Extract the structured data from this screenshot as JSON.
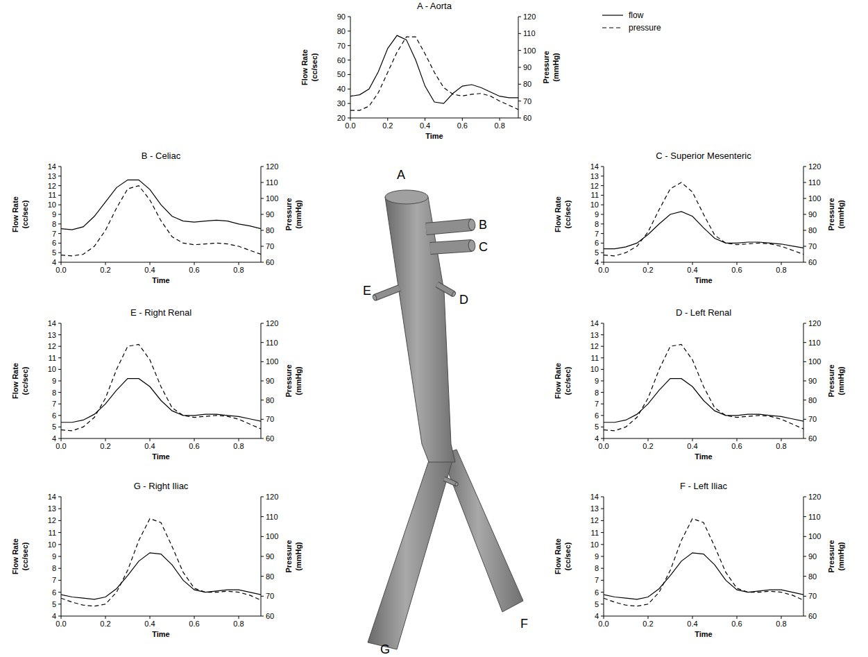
{
  "chart_data": [
    {
      "type": "line",
      "title": "A - Aorta",
      "x_label": "Time",
      "y_label": "Flow Rate (cc/sec)",
      "y2_label": "Pressure (mmHg)",
      "legend": "right",
      "x": [
        0,
        0.05,
        0.1,
        0.15,
        0.2,
        0.25,
        0.3,
        0.35,
        0.4,
        0.45,
        0.5,
        0.55,
        0.6,
        0.65,
        0.7,
        0.75,
        0.8,
        0.85,
        0.9
      ],
      "xlim": [
        0,
        0.9
      ],
      "xticks": [
        {
          "value": 0,
          "label": "0.0"
        },
        0.2,
        0.4,
        0.6,
        0.8
      ],
      "ylim": [
        20,
        90
      ],
      "yticks": [
        20,
        30,
        40,
        50,
        60,
        70,
        80,
        90
      ],
      "y2lim": [
        60,
        120
      ],
      "y2ticks": [
        60,
        70,
        80,
        90,
        100,
        110,
        120
      ],
      "series": [
        {
          "name": "flow",
          "color": "#000000",
          "line_style": "solid",
          "values": [
            35,
            36,
            40,
            52,
            68,
            77,
            74,
            60,
            42,
            31,
            30,
            37,
            42,
            43,
            41,
            38,
            35,
            34,
            34
          ]
        },
        {
          "name": "pressure",
          "color": "#000000",
          "line_style": "dashed",
          "axis": "y2",
          "values": [
            64.5,
            64.5,
            67,
            75,
            87,
            99,
            108,
            108,
            98,
            87,
            78,
            74,
            73,
            74,
            74.5,
            73,
            70,
            67.5,
            65
          ]
        }
      ]
    },
    {
      "type": "line",
      "title": "B - Celiac",
      "x_label": "Time",
      "y_label": "Flow Rate (cc/sec)",
      "y2_label": "Pressure (mmHg)",
      "x": [
        0,
        0.05,
        0.1,
        0.15,
        0.2,
        0.25,
        0.3,
        0.35,
        0.4,
        0.45,
        0.5,
        0.55,
        0.6,
        0.65,
        0.7,
        0.75,
        0.8,
        0.85,
        0.9
      ],
      "xlim": [
        0,
        0.9
      ],
      "xticks": [
        {
          "value": 0,
          "label": "0.0"
        },
        0.2,
        0.4,
        0.6,
        0.8
      ],
      "ylim": [
        4,
        14
      ],
      "yticks": [
        4,
        5,
        6,
        7,
        8,
        9,
        10,
        11,
        12,
        13,
        14
      ],
      "y2lim": [
        60,
        120
      ],
      "y2ticks": [
        60,
        70,
        80,
        90,
        100,
        110,
        120
      ],
      "series": [
        {
          "color": "#000000",
          "line_style": "solid",
          "values": [
            7.5,
            7.4,
            7.7,
            8.8,
            10.3,
            11.8,
            12.6,
            12.6,
            11.6,
            10.0,
            8.8,
            8.3,
            8.2,
            8.3,
            8.4,
            8.3,
            8.0,
            7.8,
            7.5
          ]
        },
        {
          "color": "#000000",
          "line_style": "dashed",
          "axis": "y2",
          "values": [
            64.5,
            64,
            65,
            70,
            80,
            94,
            106,
            108,
            99,
            86,
            76,
            72,
            71,
            71.5,
            72,
            71.5,
            70,
            67.5,
            65
          ]
        }
      ]
    },
    {
      "type": "line",
      "title": "C - Superior Mesenteric",
      "x_label": "Time",
      "y_label": "Flow Rate (cc/sec)",
      "y2_label": "Pressure (mmHg)",
      "x": [
        0,
        0.05,
        0.1,
        0.15,
        0.2,
        0.25,
        0.3,
        0.35,
        0.4,
        0.45,
        0.5,
        0.55,
        0.6,
        0.65,
        0.7,
        0.75,
        0.8,
        0.85,
        0.9
      ],
      "xlim": [
        0,
        0.9
      ],
      "xticks": [
        {
          "value": 0,
          "label": "0.0"
        },
        0.2,
        0.4,
        0.6,
        0.8
      ],
      "ylim": [
        4,
        14
      ],
      "yticks": [
        4,
        5,
        6,
        7,
        8,
        9,
        10,
        11,
        12,
        13,
        14
      ],
      "y2lim": [
        60,
        120
      ],
      "y2ticks": [
        60,
        70,
        80,
        90,
        100,
        110,
        120
      ],
      "series": [
        {
          "color": "#000000",
          "line_style": "solid",
          "values": [
            5.4,
            5.4,
            5.6,
            6.0,
            6.9,
            8.0,
            9.0,
            9.3,
            8.8,
            7.6,
            6.5,
            6.0,
            6.0,
            6.1,
            6.1,
            6.0,
            5.9,
            5.7,
            5.5
          ]
        },
        {
          "color": "#000000",
          "line_style": "dashed",
          "axis": "y2",
          "values": [
            64.5,
            64,
            66,
            70,
            79,
            93,
            106,
            110,
            104,
            90,
            77,
            72,
            71,
            71.5,
            72,
            71.5,
            70,
            67.5,
            65
          ]
        }
      ]
    },
    {
      "type": "line",
      "title": "E - Right Renal",
      "x_label": "Time",
      "y_label": "Flow Rate (cc/sec)",
      "y2_label": "Pressure (mmHg)",
      "x": [
        0,
        0.05,
        0.1,
        0.15,
        0.2,
        0.25,
        0.3,
        0.35,
        0.4,
        0.45,
        0.5,
        0.55,
        0.6,
        0.65,
        0.7,
        0.75,
        0.8,
        0.85,
        0.9
      ],
      "xlim": [
        0,
        0.9
      ],
      "xticks": [
        {
          "value": 0,
          "label": "0.0"
        },
        0.2,
        0.4,
        0.6,
        0.8
      ],
      "ylim": [
        4,
        14
      ],
      "yticks": [
        4,
        5,
        6,
        7,
        8,
        9,
        10,
        11,
        12,
        13,
        14
      ],
      "y2lim": [
        60,
        120
      ],
      "y2ticks": [
        60,
        70,
        80,
        90,
        100,
        110,
        120
      ],
      "series": [
        {
          "color": "#000000",
          "line_style": "solid",
          "values": [
            5.4,
            5.4,
            5.6,
            6.1,
            7.0,
            8.2,
            9.2,
            9.2,
            8.5,
            7.3,
            6.4,
            6.0,
            6.0,
            6.1,
            6.1,
            6.0,
            5.9,
            5.7,
            5.5
          ]
        },
        {
          "color": "#000000",
          "line_style": "dashed",
          "axis": "y2",
          "values": [
            64.5,
            64,
            66,
            71,
            81,
            96,
            108,
            109,
            101,
            87,
            76,
            72,
            71,
            71.5,
            72,
            71.5,
            70,
            67.5,
            65
          ]
        }
      ]
    },
    {
      "type": "line",
      "title": "D - Left Renal",
      "x_label": "Time",
      "y_label": "Flow Rate (cc/sec)",
      "y2_label": "Pressure (mmHg)",
      "x": [
        0,
        0.05,
        0.1,
        0.15,
        0.2,
        0.25,
        0.3,
        0.35,
        0.4,
        0.45,
        0.5,
        0.55,
        0.6,
        0.65,
        0.7,
        0.75,
        0.8,
        0.85,
        0.9
      ],
      "xlim": [
        0,
        0.9
      ],
      "xticks": [
        {
          "value": 0,
          "label": "0.0"
        },
        0.2,
        0.4,
        0.6,
        0.8
      ],
      "ylim": [
        4,
        14
      ],
      "yticks": [
        4,
        5,
        6,
        7,
        8,
        9,
        10,
        11,
        12,
        13,
        14
      ],
      "y2lim": [
        60,
        120
      ],
      "y2ticks": [
        60,
        70,
        80,
        90,
        100,
        110,
        120
      ],
      "series": [
        {
          "color": "#000000",
          "line_style": "solid",
          "values": [
            5.4,
            5.4,
            5.6,
            6.1,
            7.0,
            8.2,
            9.2,
            9.2,
            8.5,
            7.3,
            6.4,
            6.0,
            6.0,
            6.1,
            6.1,
            6.0,
            5.9,
            5.7,
            5.5
          ]
        },
        {
          "color": "#000000",
          "line_style": "dashed",
          "axis": "y2",
          "values": [
            64.5,
            64,
            66,
            71,
            81,
            96,
            108,
            109,
            101,
            87,
            76,
            72,
            71,
            71.5,
            72,
            71.5,
            70,
            67.5,
            65
          ]
        }
      ]
    },
    {
      "type": "line",
      "title": "G - Right Iliac",
      "x_label": "Time",
      "y_label": "Flow Rate (cc/sec)",
      "y2_label": "Pressure (mmHg)",
      "x": [
        0,
        0.05,
        0.1,
        0.15,
        0.2,
        0.25,
        0.3,
        0.35,
        0.4,
        0.45,
        0.5,
        0.55,
        0.6,
        0.65,
        0.7,
        0.75,
        0.8,
        0.85,
        0.9
      ],
      "xlim": [
        0,
        0.9
      ],
      "xticks": [
        {
          "value": 0,
          "label": "0.0"
        },
        0.2,
        0.4,
        0.6,
        0.8
      ],
      "ylim": [
        4,
        14
      ],
      "yticks": [
        4,
        5,
        6,
        7,
        8,
        9,
        10,
        11,
        12,
        13,
        14
      ],
      "y2lim": [
        60,
        120
      ],
      "y2ticks": [
        60,
        70,
        80,
        90,
        100,
        110,
        120
      ],
      "series": [
        {
          "color": "#000000",
          "line_style": "solid",
          "values": [
            5.8,
            5.6,
            5.5,
            5.4,
            5.6,
            6.3,
            7.4,
            8.6,
            9.3,
            9.2,
            8.3,
            7.0,
            6.2,
            6.0,
            6.1,
            6.2,
            6.2,
            6.0,
            5.8
          ]
        },
        {
          "color": "#000000",
          "line_style": "dashed",
          "axis": "y2",
          "values": [
            69,
            67,
            65.5,
            65,
            66,
            72,
            83,
            98,
            109,
            107,
            95,
            82,
            74,
            72,
            72,
            72.5,
            72,
            70.5,
            68
          ]
        }
      ]
    },
    {
      "type": "line",
      "title": "F - Left Iliac",
      "x_label": "Time",
      "y_label": "Flow Rate (cc/sec)",
      "y2_label": "Pressure (mmHg)",
      "x": [
        0,
        0.05,
        0.1,
        0.15,
        0.2,
        0.25,
        0.3,
        0.35,
        0.4,
        0.45,
        0.5,
        0.55,
        0.6,
        0.65,
        0.7,
        0.75,
        0.8,
        0.85,
        0.9
      ],
      "xlim": [
        0,
        0.9
      ],
      "xticks": [
        {
          "value": 0,
          "label": "0.0"
        },
        0.2,
        0.4,
        0.6,
        0.8
      ],
      "ylim": [
        4,
        14
      ],
      "yticks": [
        4,
        5,
        6,
        7,
        8,
        9,
        10,
        11,
        12,
        13,
        14
      ],
      "y2lim": [
        60,
        120
      ],
      "y2ticks": [
        60,
        70,
        80,
        90,
        100,
        110,
        120
      ],
      "series": [
        {
          "color": "#000000",
          "line_style": "solid",
          "values": [
            5.8,
            5.6,
            5.5,
            5.4,
            5.6,
            6.3,
            7.4,
            8.6,
            9.3,
            9.2,
            8.3,
            7.0,
            6.2,
            6.0,
            6.1,
            6.2,
            6.2,
            6.0,
            5.8
          ]
        },
        {
          "color": "#000000",
          "line_style": "dashed",
          "axis": "y2",
          "values": [
            69,
            67,
            65.5,
            65,
            66,
            72,
            83,
            98,
            109,
            107,
            95,
            82,
            74,
            72,
            72,
            72.5,
            72,
            70.5,
            68
          ]
        }
      ]
    }
  ],
  "diagram": {
    "labels": [
      "A",
      "B",
      "C",
      "D",
      "E",
      "F",
      "G"
    ]
  }
}
